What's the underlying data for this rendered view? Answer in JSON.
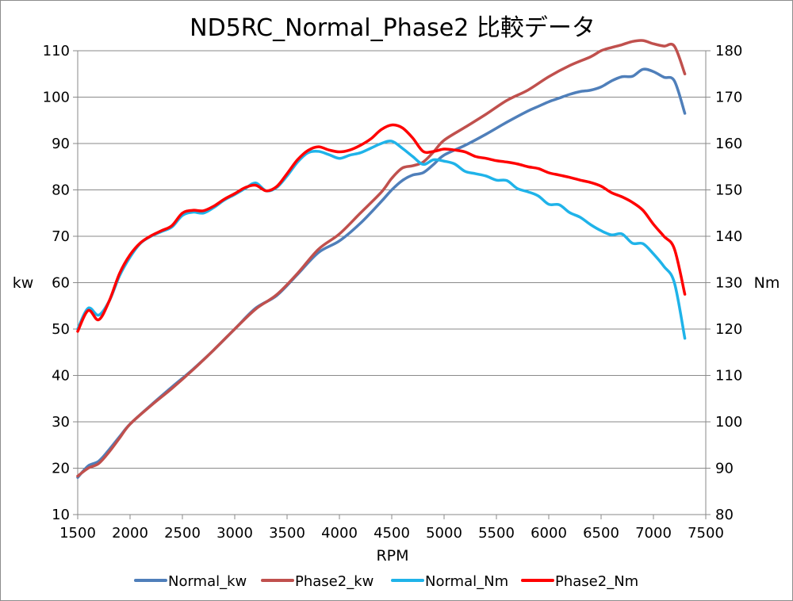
{
  "chart_data": {
    "type": "line",
    "title": "ND5RC_Normal_Phase2 比較データ",
    "xlabel": "RPM",
    "ylabel_left": "kw",
    "ylabel_right": "Nm",
    "xlim": [
      1500,
      7500
    ],
    "ylim_left": [
      10,
      110
    ],
    "ylim_right": [
      80,
      180
    ],
    "xticks": [
      1500,
      2000,
      2500,
      3000,
      3500,
      4000,
      4500,
      5000,
      5500,
      6000,
      6500,
      7000,
      7500
    ],
    "yticks_left": [
      10,
      20,
      30,
      40,
      50,
      60,
      70,
      80,
      90,
      100,
      110
    ],
    "yticks_right": [
      80,
      90,
      100,
      110,
      120,
      130,
      140,
      150,
      160,
      170,
      180
    ],
    "grid": "horizontal",
    "legend": "bottom",
    "series": [
      {
        "name": "Normal_kw",
        "axis": "left",
        "color": "#4f7fba",
        "x": [
          1500,
          1600,
          1700,
          1800,
          1900,
          2000,
          2200,
          2400,
          2600,
          2800,
          3000,
          3200,
          3400,
          3600,
          3800,
          4000,
          4200,
          4400,
          4500,
          4600,
          4700,
          4800,
          4900,
          5000,
          5200,
          5400,
          5600,
          5800,
          5900,
          6000,
          6100,
          6200,
          6300,
          6400,
          6500,
          6600,
          6700,
          6800,
          6900,
          7000,
          7100,
          7200,
          7300
        ],
        "y": [
          18,
          20.5,
          21.5,
          24,
          26.8,
          29.5,
          33.6,
          37.5,
          41.3,
          45.5,
          50,
          54.5,
          57.2,
          61.8,
          66.5,
          69,
          72.8,
          77.5,
          80,
          82,
          83.2,
          83.7,
          85.5,
          87.5,
          89.6,
          92,
          94.6,
          97,
          98,
          99,
          99.8,
          100.6,
          101.2,
          101.5,
          102.2,
          103.5,
          104.4,
          104.5,
          106,
          105.5,
          104.3,
          103.5,
          96.5
        ]
      },
      {
        "name": "Phase2_kw",
        "axis": "left",
        "color": "#c0504d",
        "x": [
          1500,
          1600,
          1700,
          1800,
          1900,
          2000,
          2200,
          2400,
          2600,
          2800,
          3000,
          3200,
          3400,
          3600,
          3800,
          4000,
          4200,
          4400,
          4500,
          4600,
          4700,
          4800,
          4900,
          5000,
          5200,
          5400,
          5600,
          5800,
          6000,
          6200,
          6400,
          6500,
          6600,
          6700,
          6800,
          6900,
          7000,
          7100,
          7200,
          7300
        ],
        "y": [
          18.3,
          20,
          21,
          23.5,
          26.5,
          29.5,
          33.5,
          37.2,
          41.2,
          45.5,
          50,
          54.3,
          57.4,
          62,
          67.2,
          70.5,
          75,
          79.5,
          82.5,
          84.7,
          85.2,
          86,
          88.2,
          90.7,
          93.5,
          96.3,
          99.3,
          101.5,
          104.4,
          106.8,
          108.7,
          110,
          110.7,
          111.3,
          112,
          112.2,
          111.5,
          111,
          111,
          105
        ]
      },
      {
        "name": "Normal_Nm",
        "axis": "right",
        "color": "#1fb3e9",
        "x": [
          1500,
          1600,
          1700,
          1800,
          1900,
          2000,
          2100,
          2200,
          2300,
          2400,
          2500,
          2600,
          2700,
          2800,
          2900,
          3000,
          3100,
          3200,
          3300,
          3400,
          3500,
          3600,
          3700,
          3800,
          3900,
          4000,
          4100,
          4200,
          4300,
          4400,
          4500,
          4600,
          4700,
          4800,
          4900,
          5000,
          5100,
          5200,
          5300,
          5400,
          5500,
          5600,
          5700,
          5800,
          5900,
          6000,
          6100,
          6200,
          6300,
          6400,
          6500,
          6600,
          6700,
          6800,
          6900,
          7000,
          7100,
          7200,
          7300
        ],
        "y": [
          120,
          124.5,
          123,
          126,
          131.5,
          135.5,
          138.5,
          140,
          141,
          142,
          144.5,
          145.2,
          145,
          146.2,
          147.8,
          149,
          150.3,
          151.5,
          149.8,
          150.5,
          153,
          156,
          158,
          158.3,
          157.6,
          156.8,
          157.5,
          158,
          159,
          160,
          160.5,
          159,
          157.2,
          155.5,
          156.5,
          156.2,
          155.6,
          154,
          153.5,
          153,
          152.1,
          152,
          150.3,
          149.6,
          148.7,
          146.9,
          146.8,
          145.1,
          144.1,
          142.5,
          141.2,
          140.3,
          140.5,
          138.5,
          138.4,
          136.2,
          133.5,
          130,
          118
        ]
      },
      {
        "name": "Phase2_Nm",
        "axis": "right",
        "color": "#ff0000",
        "x": [
          1500,
          1600,
          1700,
          1800,
          1900,
          2000,
          2100,
          2200,
          2300,
          2400,
          2500,
          2600,
          2700,
          2800,
          2900,
          3000,
          3100,
          3200,
          3300,
          3400,
          3500,
          3600,
          3700,
          3800,
          3900,
          4000,
          4100,
          4200,
          4300,
          4400,
          4500,
          4600,
          4700,
          4800,
          4900,
          5000,
          5100,
          5200,
          5300,
          5400,
          5500,
          5600,
          5700,
          5800,
          5900,
          6000,
          6100,
          6200,
          6300,
          6400,
          6500,
          6600,
          6700,
          6800,
          6900,
          7000,
          7100,
          7200,
          7300
        ],
        "y": [
          119.5,
          124,
          122,
          126,
          132,
          136,
          138.6,
          140.1,
          141.2,
          142.3,
          145,
          145.6,
          145.5,
          146.5,
          148,
          149.2,
          150.5,
          151,
          149.8,
          150.7,
          153.5,
          156.5,
          158.5,
          159.3,
          158.6,
          158.2,
          158.6,
          159.6,
          161,
          163,
          164,
          163.4,
          161.2,
          158.3,
          158.3,
          158.8,
          158.6,
          158.2,
          157.2,
          156.8,
          156.3,
          156,
          155.6,
          155,
          154.6,
          153.7,
          153.2,
          152.7,
          152.1,
          151.6,
          150.8,
          149.4,
          148.5,
          147.3,
          145.6,
          142.6,
          140,
          137.3,
          127.5
        ]
      }
    ]
  }
}
